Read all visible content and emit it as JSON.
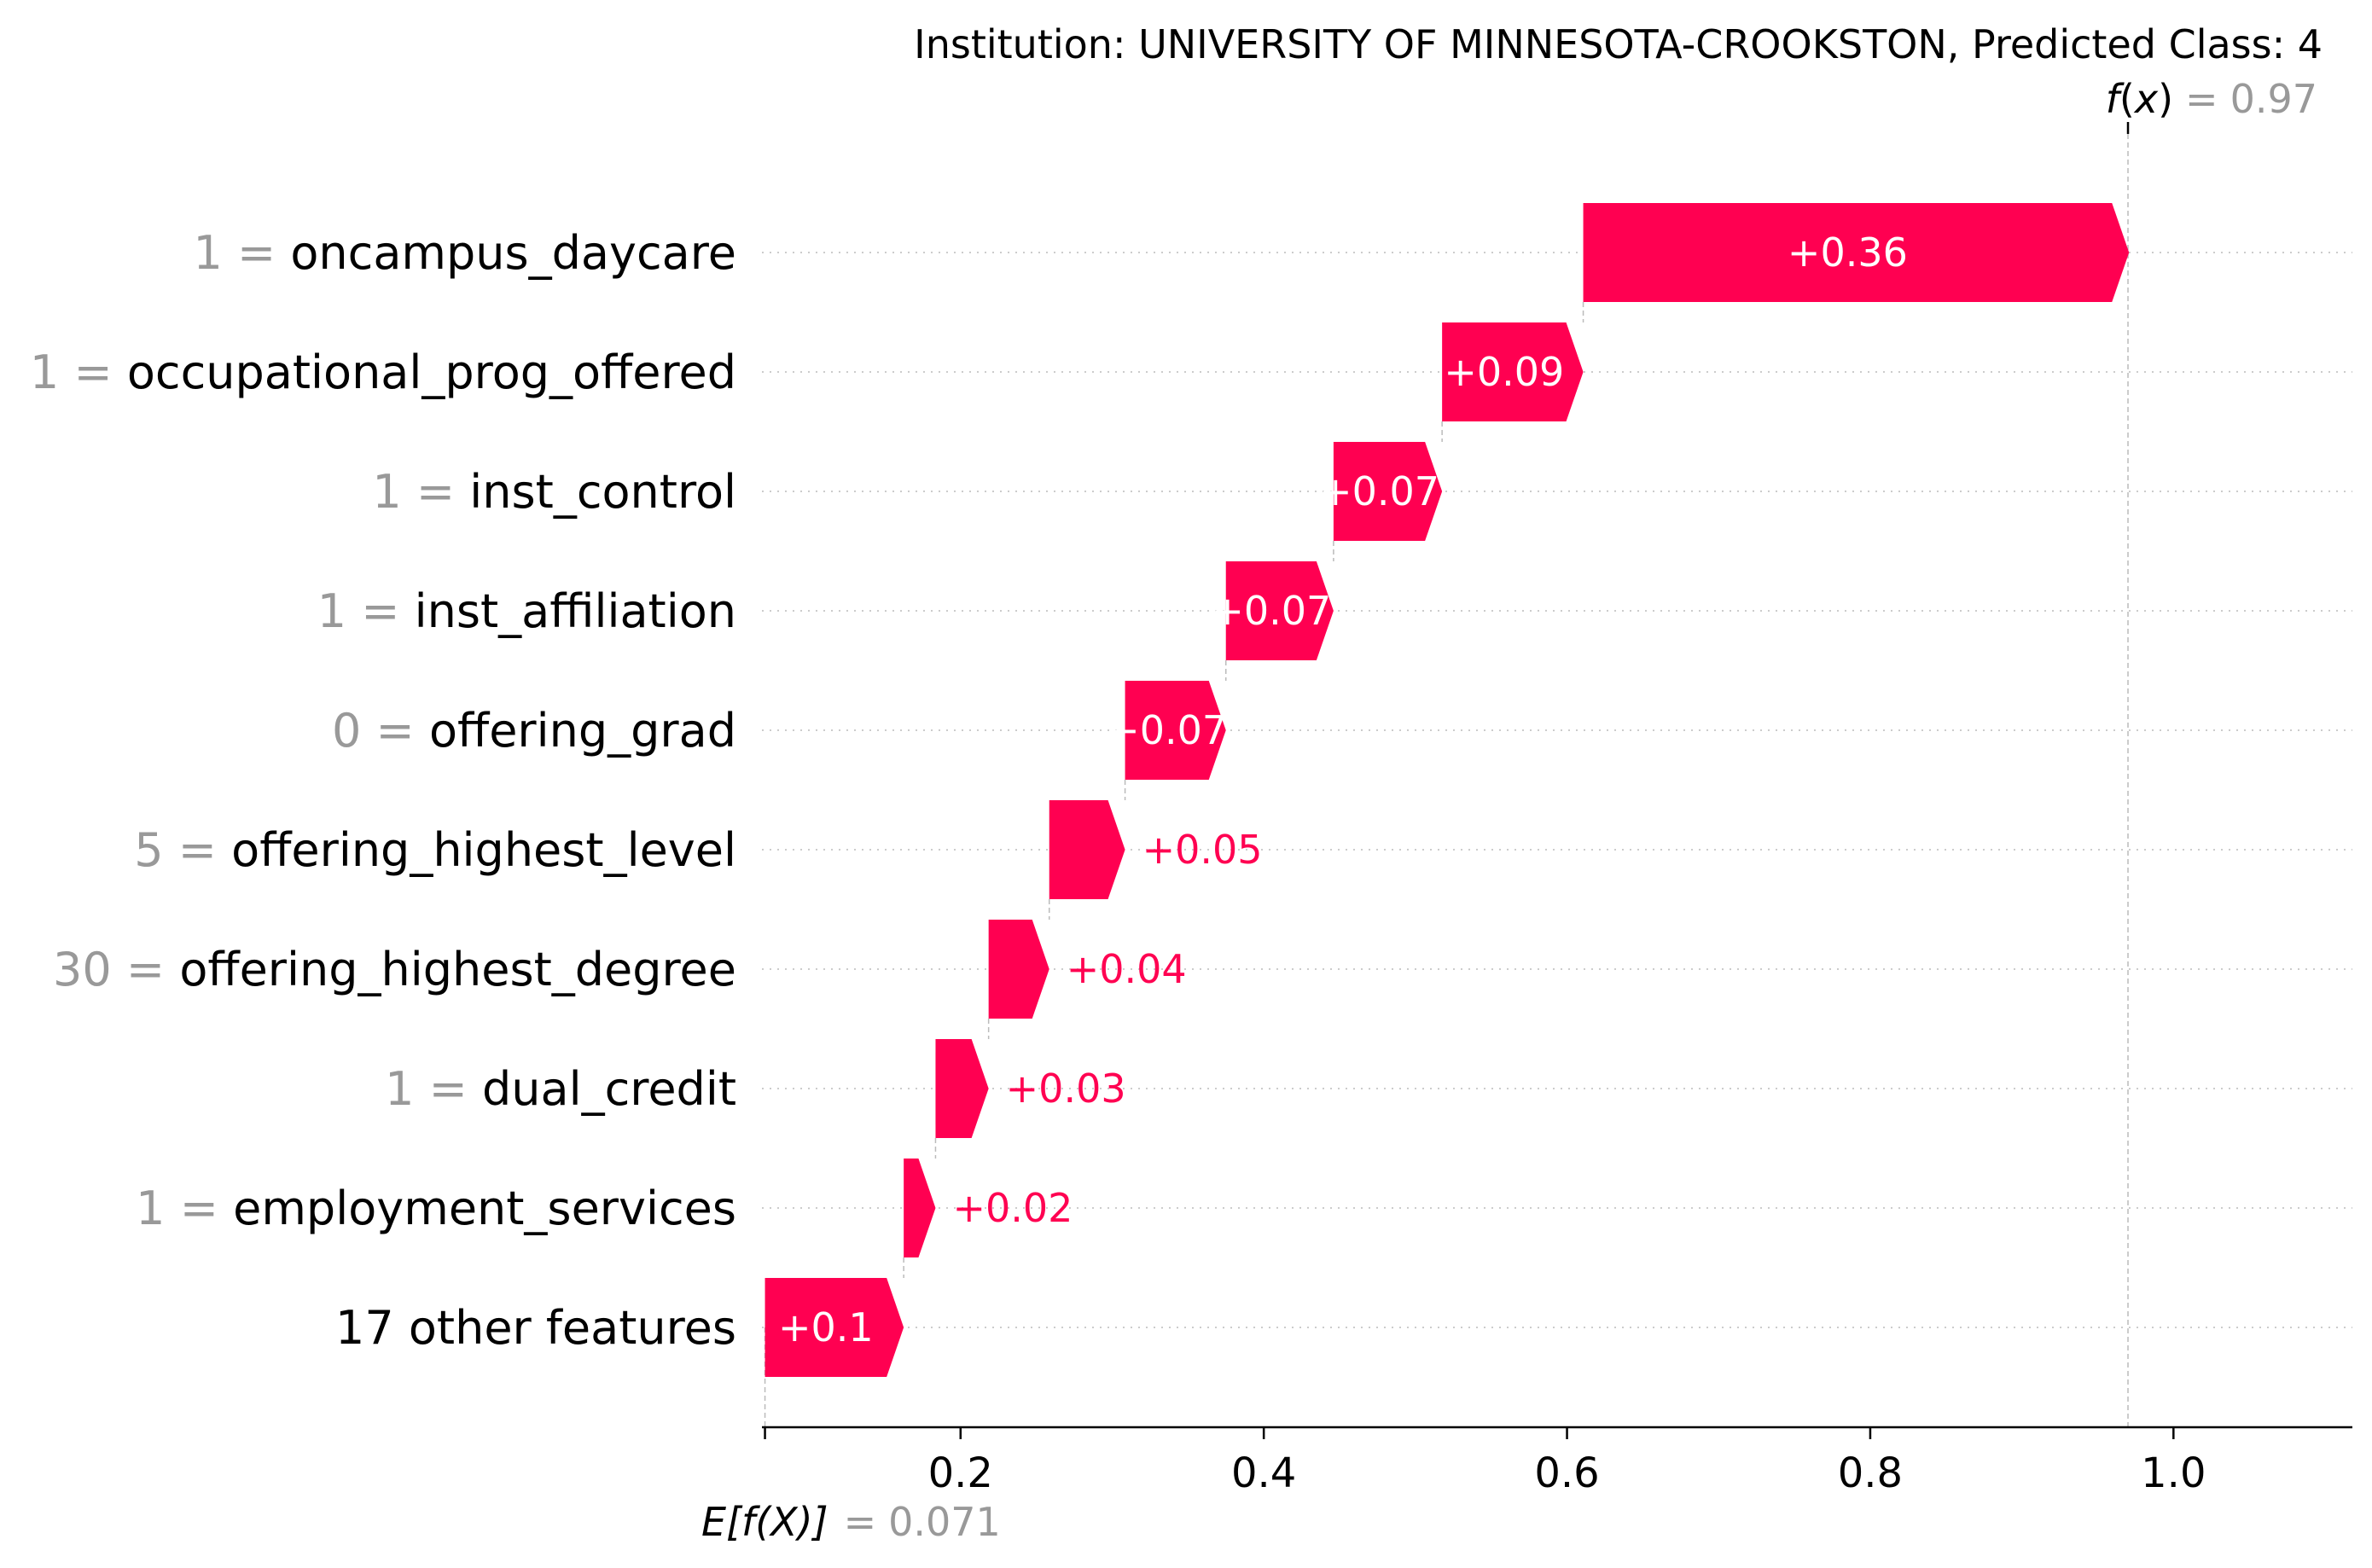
{
  "chart_data": {
    "type": "waterfall",
    "title": "Institution: UNIVERSITY OF MINNESOTA-CROOKSTON, Predicted Class: 4",
    "fx": {
      "label_f": "f",
      "label_x": "x",
      "value_text": "0.97",
      "value": 0.97
    },
    "efx": {
      "label_text": "E[f(X)]",
      "value_text": "0.071",
      "value": 0.071
    },
    "xlim": [
      0.069,
      1.118
    ],
    "xticks": [
      {
        "value": 0.2,
        "label": "0.2"
      },
      {
        "value": 0.4,
        "label": "0.4"
      },
      {
        "value": 0.6,
        "label": "0.6"
      },
      {
        "value": 0.8,
        "label": "0.8"
      },
      {
        "value": 1.0,
        "label": "1.0"
      }
    ],
    "features": [
      {
        "value_text": "1",
        "name": "oncampus_daycare",
        "start": 0.6107,
        "end": 0.9707,
        "label": "+0.36"
      },
      {
        "value_text": "1",
        "name": "occupational_prog_offered",
        "start": 0.5176,
        "end": 0.6107,
        "label": "+0.09"
      },
      {
        "value_text": "1",
        "name": "inst_control",
        "start": 0.446,
        "end": 0.5176,
        "label": "+0.07"
      },
      {
        "value_text": "1",
        "name": "inst_affiliation",
        "start": 0.375,
        "end": 0.446,
        "label": "+0.07"
      },
      {
        "value_text": "0",
        "name": "offering_grad",
        "start": 0.3085,
        "end": 0.375,
        "label": "+0.07"
      },
      {
        "value_text": "5",
        "name": "offering_highest_level",
        "start": 0.2585,
        "end": 0.3085,
        "label": "+0.05"
      },
      {
        "value_text": "30",
        "name": "offering_highest_degree",
        "start": 0.2185,
        "end": 0.2585,
        "label": "+0.04"
      },
      {
        "value_text": "1",
        "name": "dual_credit",
        "start": 0.1835,
        "end": 0.2185,
        "label": "+0.03"
      },
      {
        "value_text": "1",
        "name": "employment_services",
        "start": 0.1625,
        "end": 0.1835,
        "label": "+0.02"
      },
      {
        "value_text": "",
        "name": "17 other features",
        "start": 0.071,
        "end": 0.1625,
        "label": "+0.1"
      }
    ],
    "colors": {
      "positive": "#ff0051",
      "positive_text_inside": "#ffffff",
      "feature_value_text": "#999999",
      "axis": "#000000",
      "gridline": "#cccccc"
    }
  }
}
